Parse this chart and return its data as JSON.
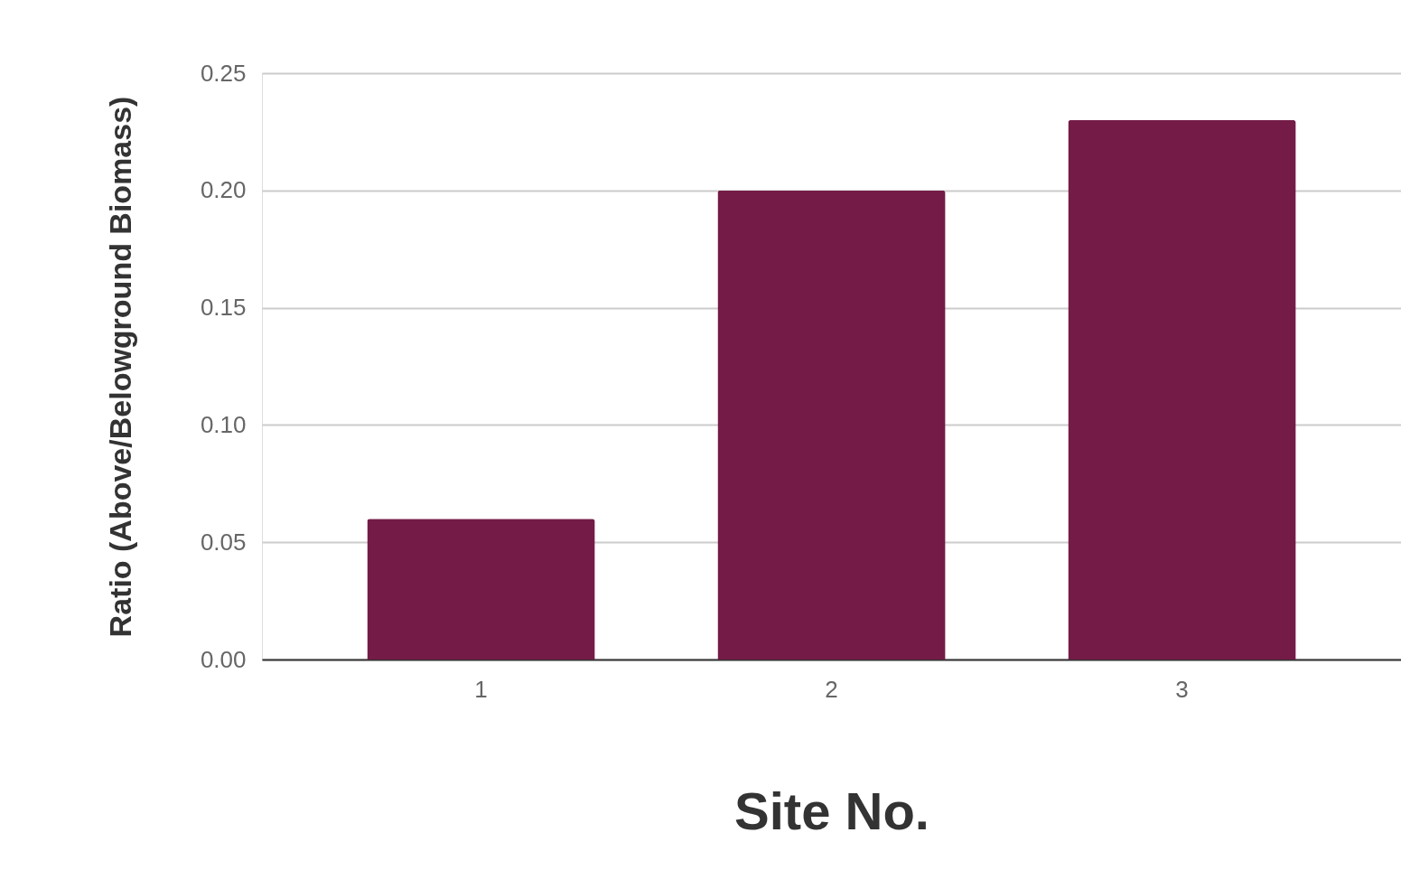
{
  "chart_data": {
    "type": "bar",
    "xlabel": "Site No.",
    "ylabel": "Ratio (Above/Belowground Biomass)",
    "categories": [
      "1",
      "2",
      "3"
    ],
    "series": [
      {
        "color": "#741b47",
        "values": [
          0.06,
          0.2,
          0.23
        ]
      }
    ],
    "ylim": [
      0,
      0.25
    ],
    "yticks": [
      {
        "value": 0,
        "label": "0.00"
      },
      {
        "value": 0.05,
        "label": "0.05"
      },
      {
        "value": 0.1,
        "label": "0.10"
      },
      {
        "value": 0.15,
        "label": "0.15"
      },
      {
        "value": 0.2,
        "label": "0.20"
      },
      {
        "value": 0.25,
        "label": "0.25"
      }
    ],
    "grid": "y"
  }
}
